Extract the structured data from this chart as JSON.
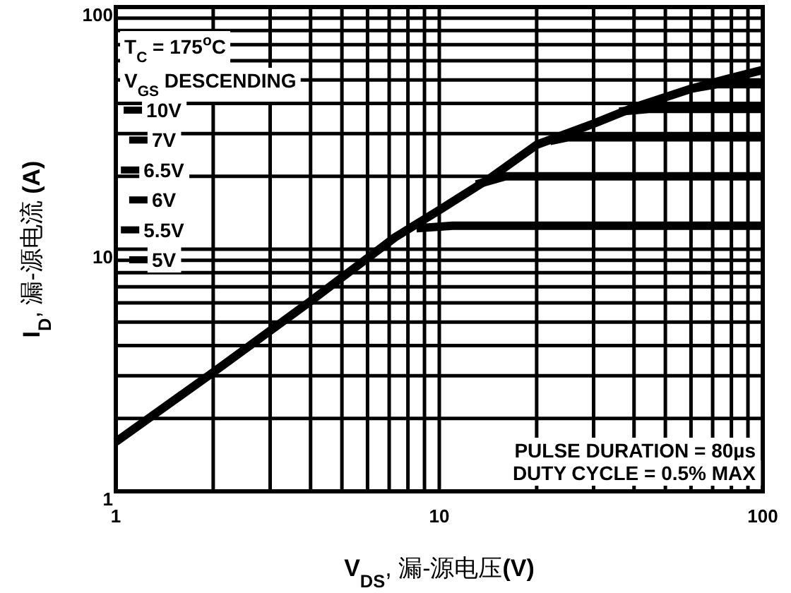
{
  "chart_data": {
    "type": "line",
    "xlabel": "**V$_{DS}$**, 漏-源电压**(V)**",
    "ylabel": "**I$_{D}$**, 漏-源电流 **(A)**",
    "legend_title": "V$_{GS}$ DESCENDING",
    "annotations": [
      "T$_{C}$ = 175$^{o}$C",
      "PULSE DURATION = 80µs",
      "DUTY CYCLE = 0.5% MAX"
    ],
    "log": "xy",
    "grid": true,
    "legend": "top left",
    "line_style": "solid",
    "marker": "none",
    "xlim": [
      1,
      100
    ],
    "ylim": [
      1,
      100
    ],
    "xticks": [
      1,
      10,
      100
    ],
    "yticks": [
      1,
      10,
      100
    ],
    "series": [
      {
        "name": "10V",
        "color": "#000000",
        "x": [
          1,
          2,
          4,
          7.3,
          10,
          14.3,
          20,
          30,
          40,
          60,
          80,
          100
        ],
        "values": [
          1.6,
          3.1,
          6.1,
          11.2,
          14.5,
          19.6,
          27,
          33,
          38.5,
          46,
          51,
          55
        ]
      },
      {
        "name": "7V",
        "color": "#000000",
        "x": [
          60,
          72,
          100
        ],
        "values": [
          46,
          48,
          48
        ]
      },
      {
        "name": "6.5V",
        "color": "#000000",
        "x": [
          36,
          45,
          100
        ],
        "values": [
          37,
          38,
          38
        ]
      },
      {
        "name": "6V",
        "color": "#000000",
        "x": [
          22,
          25,
          100
        ],
        "values": [
          28,
          29,
          29
        ]
      },
      {
        "name": "5.5V",
        "color": "#000000",
        "x": [
          13,
          16,
          100
        ],
        "values": [
          18.5,
          20,
          20
        ]
      },
      {
        "name": "5V",
        "color": "#000000",
        "x": [
          8.5,
          11,
          100
        ],
        "values": [
          12.2,
          12.5,
          12.5
        ]
      }
    ]
  }
}
